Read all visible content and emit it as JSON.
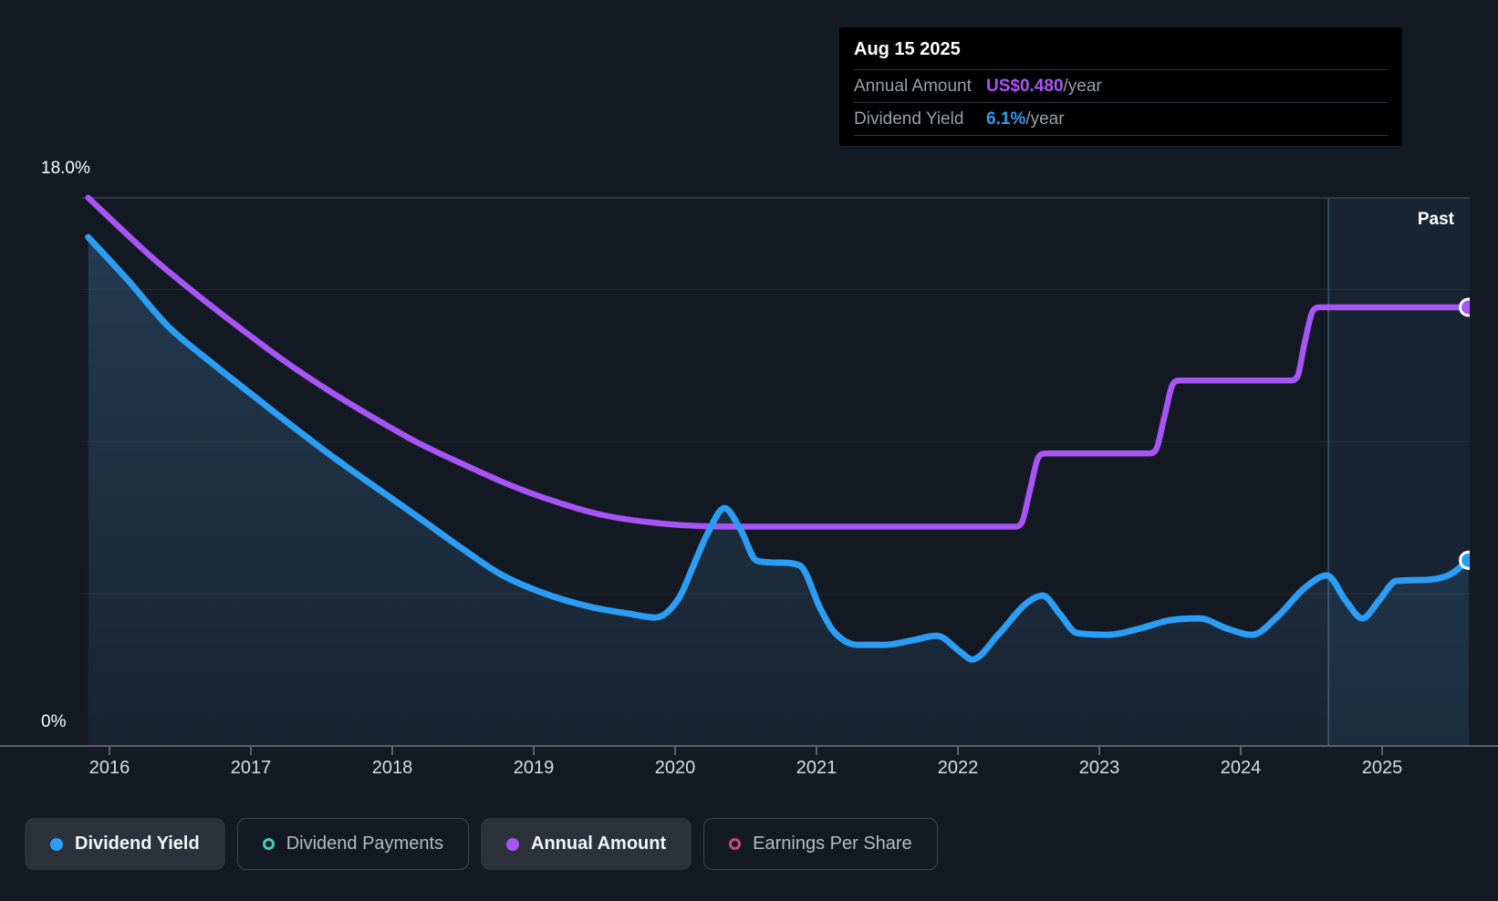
{
  "colors": {
    "background": "#141a23",
    "dividend_yield": "#2b9df4",
    "annual_amount": "#a855f7",
    "dividend_payments": "#45cbb9",
    "earnings_per_share": "#cf4880",
    "grid_top": "#3a434e",
    "grid_minor": "rgba(255,255,255,0.07)",
    "axis": "#5a626c",
    "past_fill": "rgba(66,148,215,0.09)",
    "past_divider": "rgba(125,178,226,0.30)"
  },
  "tooltip": {
    "date": "Aug 15 2025",
    "rows": [
      {
        "label": "Annual Amount",
        "value": "US$0.480",
        "suffix": "/year",
        "color_key": "annual_amount"
      },
      {
        "label": "Dividend Yield",
        "value": "6.1%",
        "suffix": "/year",
        "color_key": "dividend_yield"
      }
    ]
  },
  "y_axis": {
    "top_label": "18.0%",
    "bottom_label": "0%"
  },
  "x_axis": {
    "years": [
      2016,
      2017,
      2018,
      2019,
      2020,
      2021,
      2022,
      2023,
      2024,
      2025
    ]
  },
  "past_label": "Past",
  "legend": [
    {
      "label": "Dividend Yield",
      "swatch": "dot",
      "color_key": "dividend_yield",
      "active": true
    },
    {
      "label": "Dividend Payments",
      "swatch": "ring",
      "color_key": "dividend_payments",
      "active": false
    },
    {
      "label": "Annual Amount",
      "swatch": "dot",
      "color_key": "annual_amount",
      "active": true
    },
    {
      "label": "Earnings Per Share",
      "swatch": "ring",
      "color_key": "earnings_per_share",
      "active": false
    }
  ],
  "chart_data": {
    "type": "line",
    "title": "Dividend history",
    "x_range": [
      2015.85,
      2025.62
    ],
    "yield_axis": {
      "min": 0,
      "max": 18,
      "unit": "%",
      "gridlines": [
        18,
        15,
        10,
        5
      ]
    },
    "amount_axis": {
      "min": 0,
      "max": 0.6,
      "unit": "US$/year"
    },
    "past_window": {
      "start": 2024.62,
      "end": 2025.62
    },
    "legend_position": "bottom",
    "series": [
      {
        "name": "Dividend Yield",
        "unit": "%",
        "color_key": "dividend_yield",
        "style": "area+line",
        "end_dot": true,
        "points": [
          [
            2015.85,
            16.71
          ],
          [
            2016.13,
            15.3
          ],
          [
            2016.41,
            13.8
          ],
          [
            2016.71,
            12.63
          ],
          [
            2017.01,
            11.53
          ],
          [
            2017.3,
            10.48
          ],
          [
            2017.59,
            9.46
          ],
          [
            2017.9,
            8.44
          ],
          [
            2018.19,
            7.49
          ],
          [
            2018.48,
            6.53
          ],
          [
            2018.77,
            5.63
          ],
          [
            2019.1,
            4.97
          ],
          [
            2019.42,
            4.55
          ],
          [
            2019.68,
            4.34
          ],
          [
            2019.86,
            4.22
          ],
          [
            2020.03,
            4.88
          ],
          [
            2020.13,
            5.93
          ],
          [
            2020.23,
            6.98
          ],
          [
            2020.35,
            7.81
          ],
          [
            2020.46,
            7.13
          ],
          [
            2020.58,
            6.08
          ],
          [
            2020.74,
            6.02
          ],
          [
            2020.88,
            5.93
          ],
          [
            2021.03,
            4.49
          ],
          [
            2021.12,
            3.77
          ],
          [
            2021.29,
            3.32
          ],
          [
            2021.48,
            3.32
          ],
          [
            2021.68,
            3.47
          ],
          [
            2021.85,
            3.62
          ],
          [
            2022.02,
            3.08
          ],
          [
            2022.1,
            2.84
          ],
          [
            2022.29,
            3.68
          ],
          [
            2022.48,
            4.67
          ],
          [
            2022.6,
            4.94
          ],
          [
            2022.72,
            4.34
          ],
          [
            2022.84,
            3.71
          ],
          [
            2023.06,
            3.65
          ],
          [
            2023.29,
            3.86
          ],
          [
            2023.5,
            4.13
          ],
          [
            2023.71,
            4.19
          ],
          [
            2023.9,
            3.86
          ],
          [
            2024.08,
            3.65
          ],
          [
            2024.26,
            4.25
          ],
          [
            2024.45,
            5.18
          ],
          [
            2024.61,
            5.6
          ],
          [
            2024.74,
            4.79
          ],
          [
            2024.86,
            4.19
          ],
          [
            2024.98,
            4.79
          ],
          [
            2025.1,
            5.42
          ],
          [
            2025.29,
            5.45
          ],
          [
            2025.48,
            5.63
          ],
          [
            2025.61,
            6.1
          ]
        ]
      },
      {
        "name": "Annual Amount",
        "unit": "US$/year",
        "color_key": "annual_amount",
        "style": "line",
        "end_dot": true,
        "points": [
          [
            2015.85,
            0.6
          ],
          [
            2016.06,
            0.569
          ],
          [
            2016.32,
            0.532
          ],
          [
            2016.61,
            0.495
          ],
          [
            2016.9,
            0.46
          ],
          [
            2017.23,
            0.422
          ],
          [
            2017.55,
            0.389
          ],
          [
            2017.87,
            0.359
          ],
          [
            2018.19,
            0.331
          ],
          [
            2018.52,
            0.307
          ],
          [
            2018.84,
            0.285
          ],
          [
            2019.16,
            0.267
          ],
          [
            2019.48,
            0.253
          ],
          [
            2019.81,
            0.245
          ],
          [
            2020.13,
            0.241
          ],
          [
            2020.6,
            0.24
          ],
          [
            2022.4,
            0.24
          ],
          [
            2022.45,
            0.244
          ],
          [
            2022.51,
            0.28
          ],
          [
            2022.57,
            0.316
          ],
          [
            2022.62,
            0.32
          ],
          [
            2023.35,
            0.32
          ],
          [
            2023.4,
            0.324
          ],
          [
            2023.46,
            0.36
          ],
          [
            2023.52,
            0.396
          ],
          [
            2023.57,
            0.4
          ],
          [
            2024.35,
            0.4
          ],
          [
            2024.4,
            0.404
          ],
          [
            2024.45,
            0.44
          ],
          [
            2024.51,
            0.476
          ],
          [
            2024.56,
            0.48
          ],
          [
            2025.61,
            0.48
          ]
        ]
      }
    ]
  }
}
